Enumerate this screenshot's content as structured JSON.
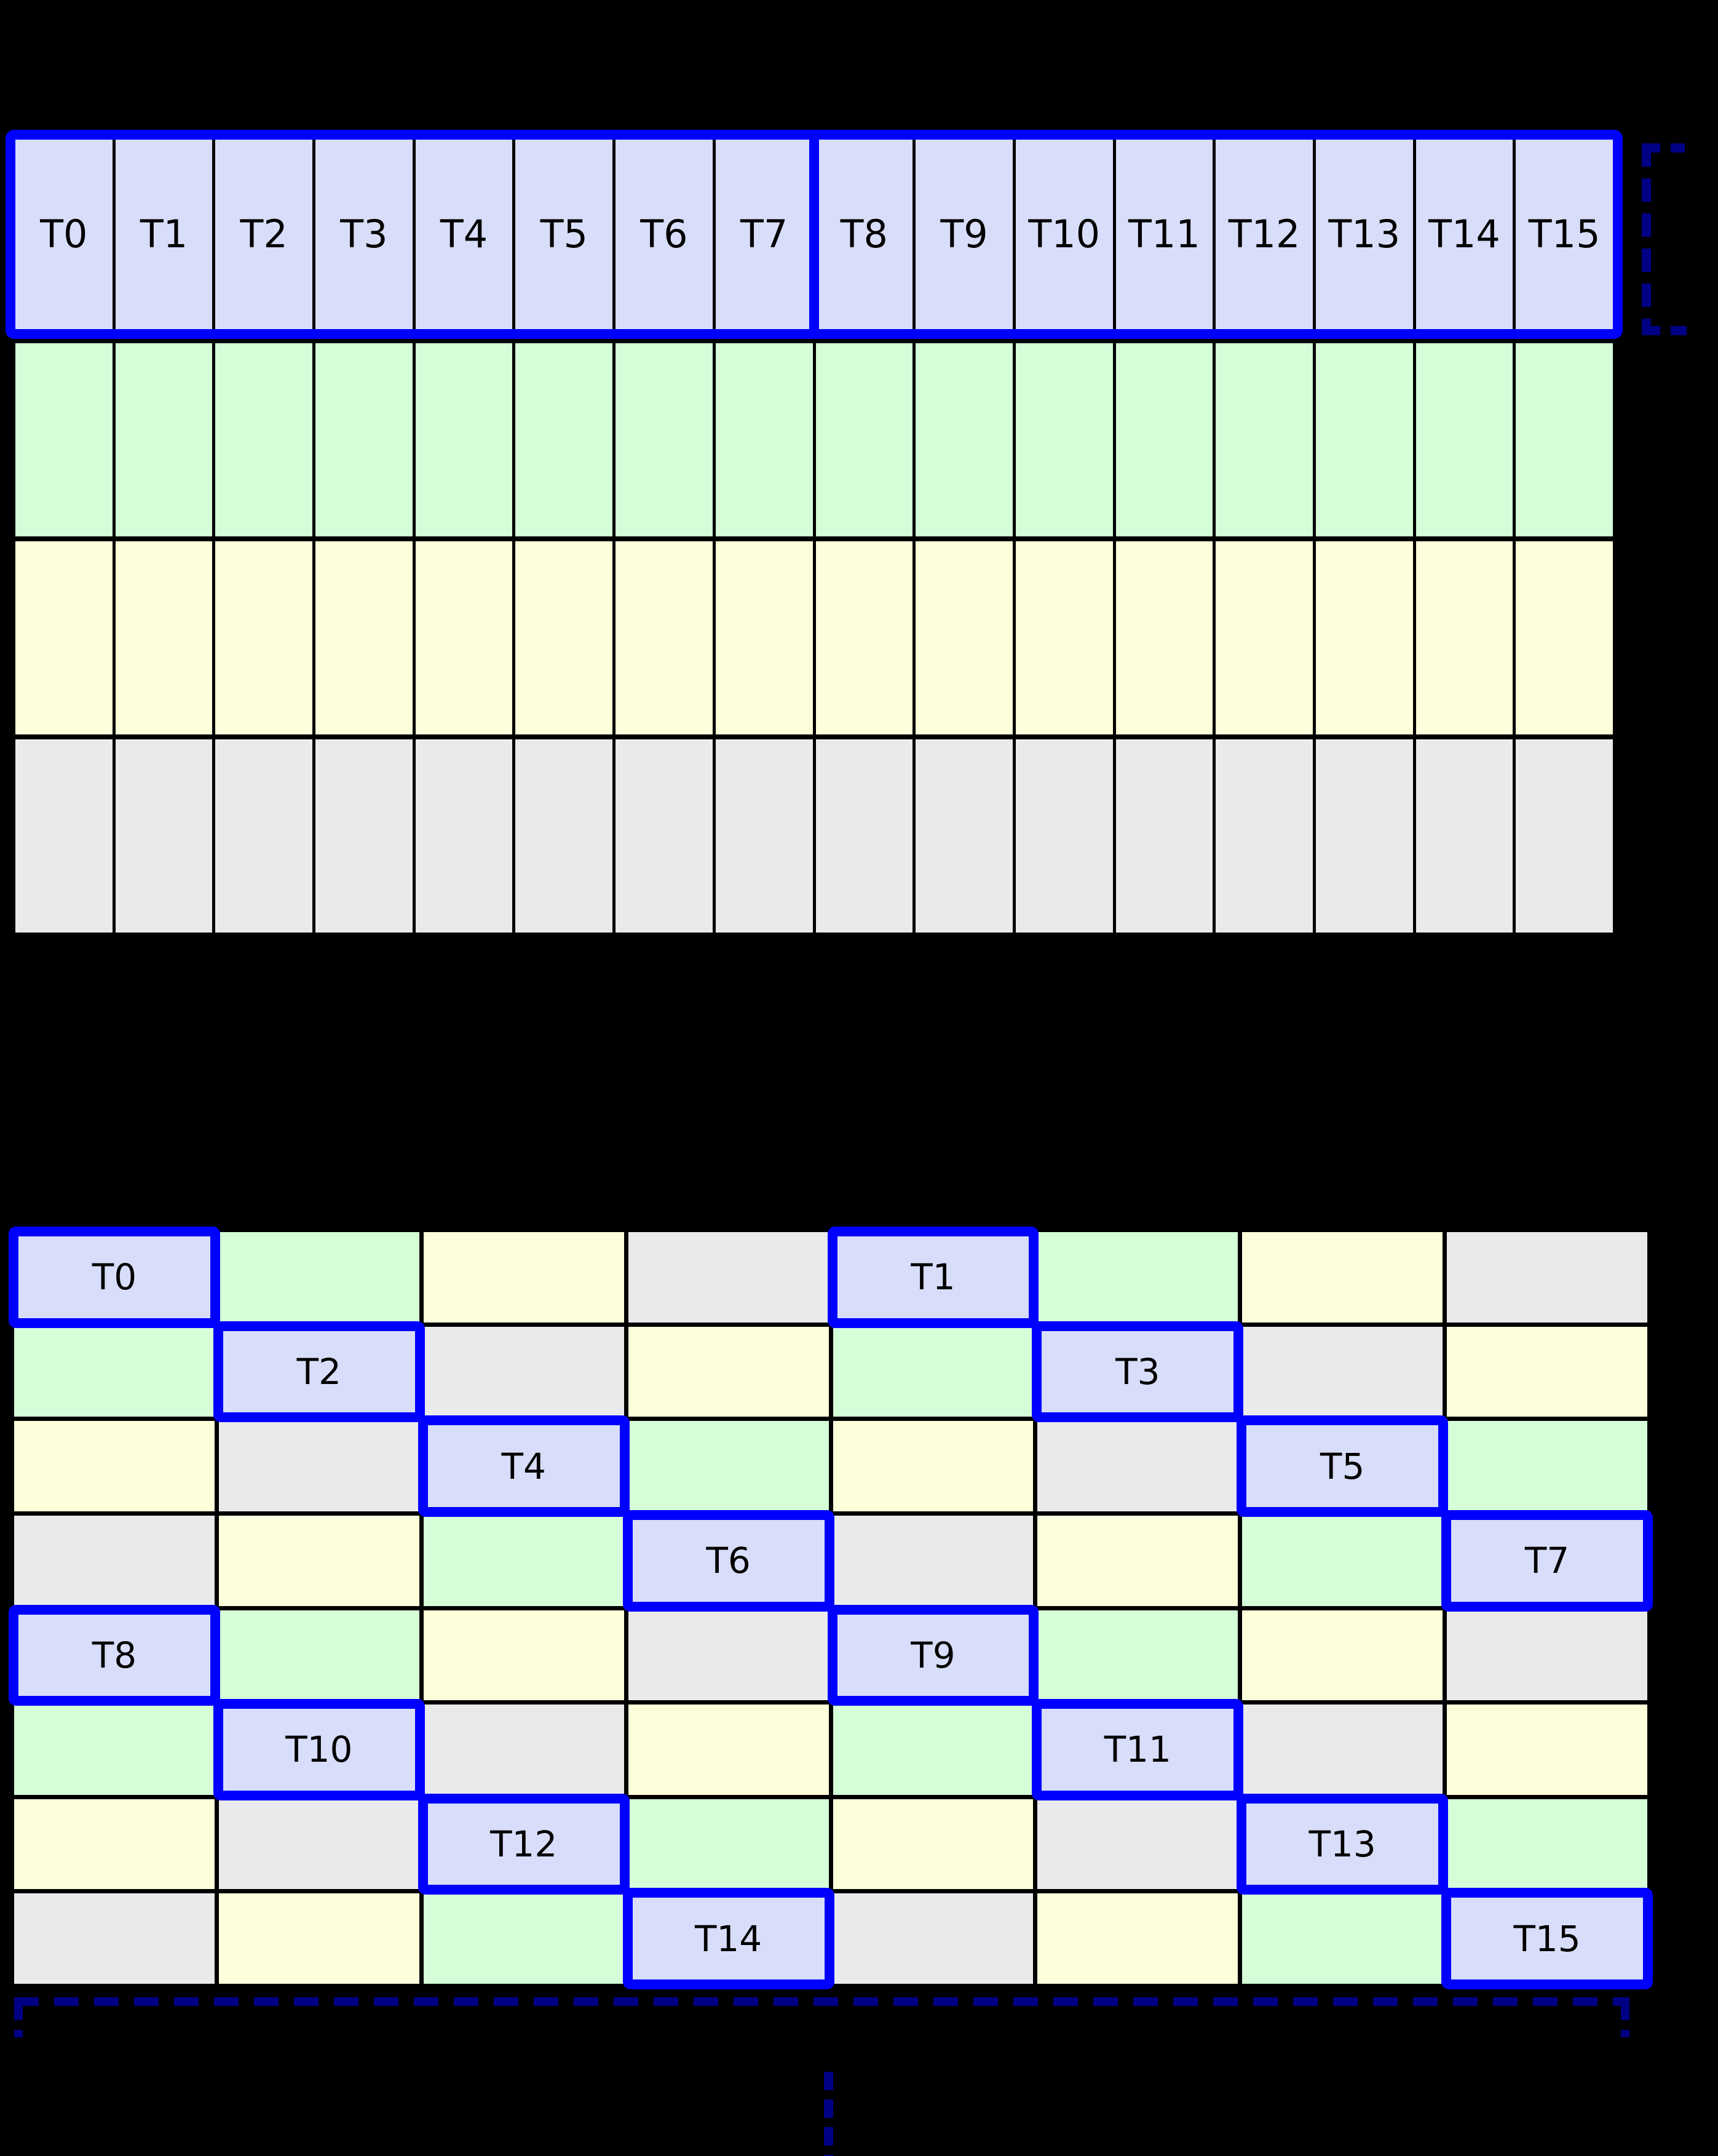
{
  "palette": {
    "thread_fill": "#d8def9",
    "green_fill": "#d5fed8",
    "yellow_fill": "#fdffda",
    "gray_fill": "#eaeaec",
    "highlight_border": "#0000ff",
    "bracket_color": "#000085",
    "background": "#000000",
    "label_color": "#000000"
  },
  "top_grid": {
    "thread_labels": [
      "T0",
      "T1",
      "T2",
      "T3",
      "T4",
      "T5",
      "T6",
      "T7",
      "T8",
      "T9",
      "T10",
      "T11",
      "T12",
      "T13",
      "T14",
      "T15"
    ],
    "rows": [
      {
        "name": "thread-row",
        "color_key": "thread_fill",
        "cells": 16
      },
      {
        "name": "green-row",
        "color_key": "green_fill",
        "cells": 16
      },
      {
        "name": "yellow-row",
        "color_key": "yellow_fill",
        "cells": 16
      },
      {
        "name": "gray-row",
        "color_key": "gray_fill",
        "cells": 16
      }
    ]
  },
  "bottom_grid": {
    "rows": [
      [
        {
          "color": "thread",
          "label": "T0"
        },
        {
          "color": "green"
        },
        {
          "color": "yellow"
        },
        {
          "color": "gray"
        },
        {
          "color": "thread",
          "label": "T1"
        },
        {
          "color": "green"
        },
        {
          "color": "yellow"
        },
        {
          "color": "gray"
        }
      ],
      [
        {
          "color": "green"
        },
        {
          "color": "thread",
          "label": "T2"
        },
        {
          "color": "gray"
        },
        {
          "color": "yellow"
        },
        {
          "color": "green"
        },
        {
          "color": "thread",
          "label": "T3"
        },
        {
          "color": "gray"
        },
        {
          "color": "yellow"
        }
      ],
      [
        {
          "color": "yellow"
        },
        {
          "color": "gray"
        },
        {
          "color": "thread",
          "label": "T4"
        },
        {
          "color": "green"
        },
        {
          "color": "yellow"
        },
        {
          "color": "gray"
        },
        {
          "color": "thread",
          "label": "T5"
        },
        {
          "color": "green"
        }
      ],
      [
        {
          "color": "gray"
        },
        {
          "color": "yellow"
        },
        {
          "color": "green"
        },
        {
          "color": "thread",
          "label": "T6"
        },
        {
          "color": "gray"
        },
        {
          "color": "yellow"
        },
        {
          "color": "green"
        },
        {
          "color": "thread",
          "label": "T7"
        }
      ],
      [
        {
          "color": "thread",
          "label": "T8"
        },
        {
          "color": "green"
        },
        {
          "color": "yellow"
        },
        {
          "color": "gray"
        },
        {
          "color": "thread",
          "label": "T9"
        },
        {
          "color": "green"
        },
        {
          "color": "yellow"
        },
        {
          "color": "gray"
        }
      ],
      [
        {
          "color": "green"
        },
        {
          "color": "thread",
          "label": "T10"
        },
        {
          "color": "gray"
        },
        {
          "color": "yellow"
        },
        {
          "color": "green"
        },
        {
          "color": "thread",
          "label": "T11"
        },
        {
          "color": "gray"
        },
        {
          "color": "yellow"
        }
      ],
      [
        {
          "color": "yellow"
        },
        {
          "color": "gray"
        },
        {
          "color": "thread",
          "label": "T12"
        },
        {
          "color": "green"
        },
        {
          "color": "yellow"
        },
        {
          "color": "gray"
        },
        {
          "color": "thread",
          "label": "T13"
        },
        {
          "color": "green"
        }
      ],
      [
        {
          "color": "gray"
        },
        {
          "color": "yellow"
        },
        {
          "color": "green"
        },
        {
          "color": "thread",
          "label": "T14"
        },
        {
          "color": "gray"
        },
        {
          "color": "yellow"
        },
        {
          "color": "green"
        },
        {
          "color": "thread",
          "label": "T15"
        }
      ]
    ]
  }
}
